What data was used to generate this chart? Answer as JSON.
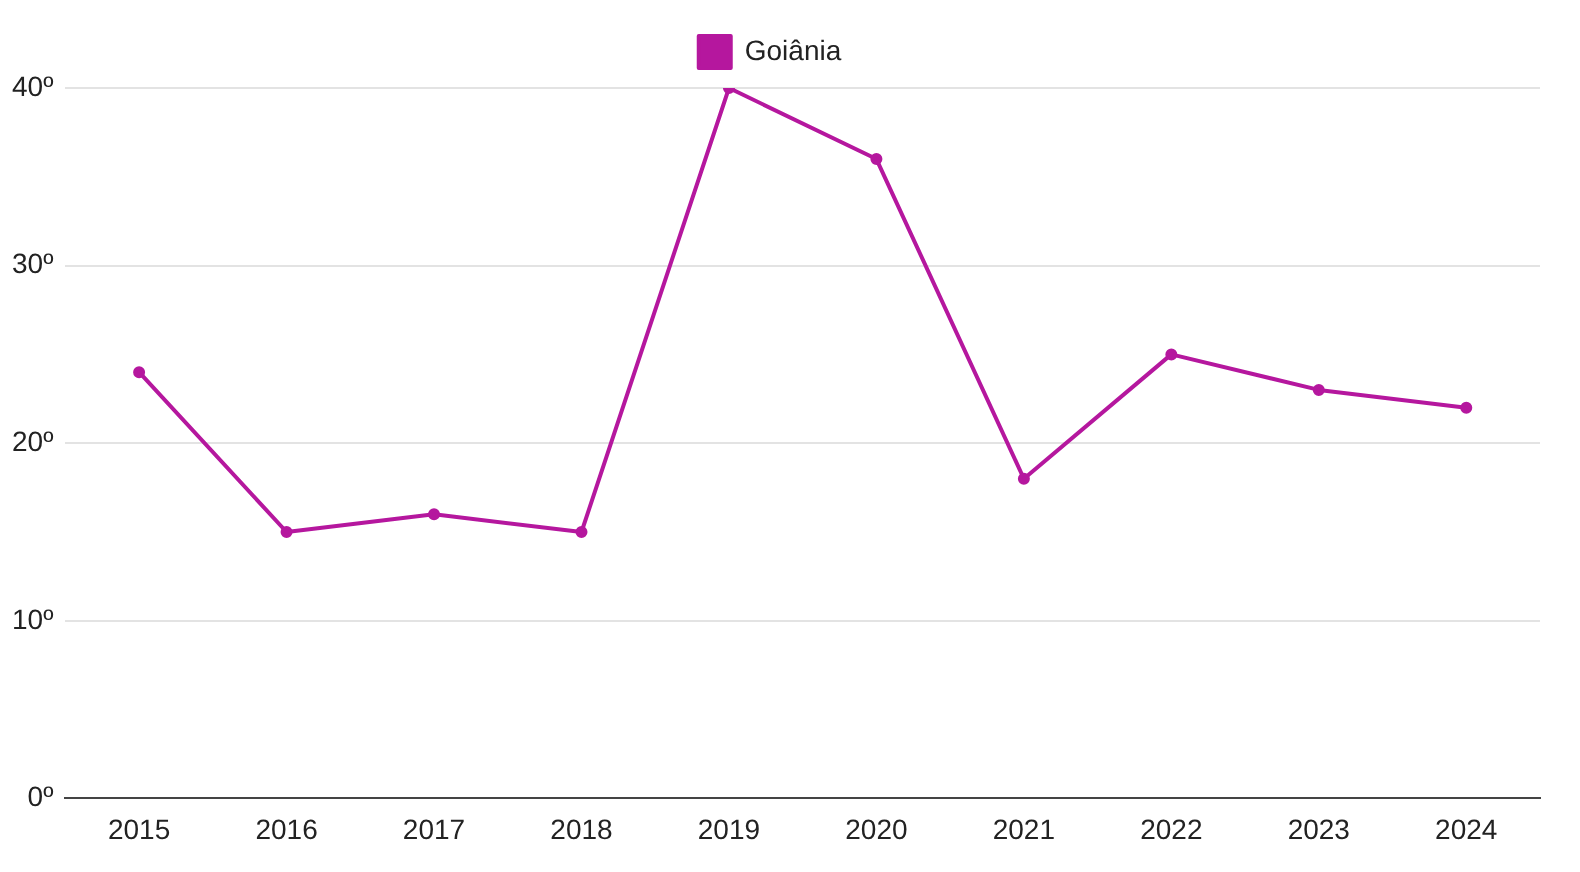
{
  "chart_data": {
    "type": "line",
    "categories": [
      "2015",
      "2016",
      "2017",
      "2018",
      "2019",
      "2020",
      "2021",
      "2022",
      "2023",
      "2024"
    ],
    "series": [
      {
        "name": "Goiânia",
        "color": "#b5179e",
        "values": [
          24,
          15,
          16,
          15,
          40,
          36,
          18,
          25,
          23,
          22
        ]
      }
    ],
    "ylim": [
      0,
      40
    ],
    "yticks": [
      {
        "value": 0,
        "label": "0º"
      },
      {
        "value": 10,
        "label": "10º"
      },
      {
        "value": 20,
        "label": "20º"
      },
      {
        "value": 30,
        "label": "30º"
      },
      {
        "value": 40,
        "label": "40º"
      }
    ],
    "grid": "y",
    "legend": "top",
    "marker": "circle",
    "line_style": "solid"
  }
}
